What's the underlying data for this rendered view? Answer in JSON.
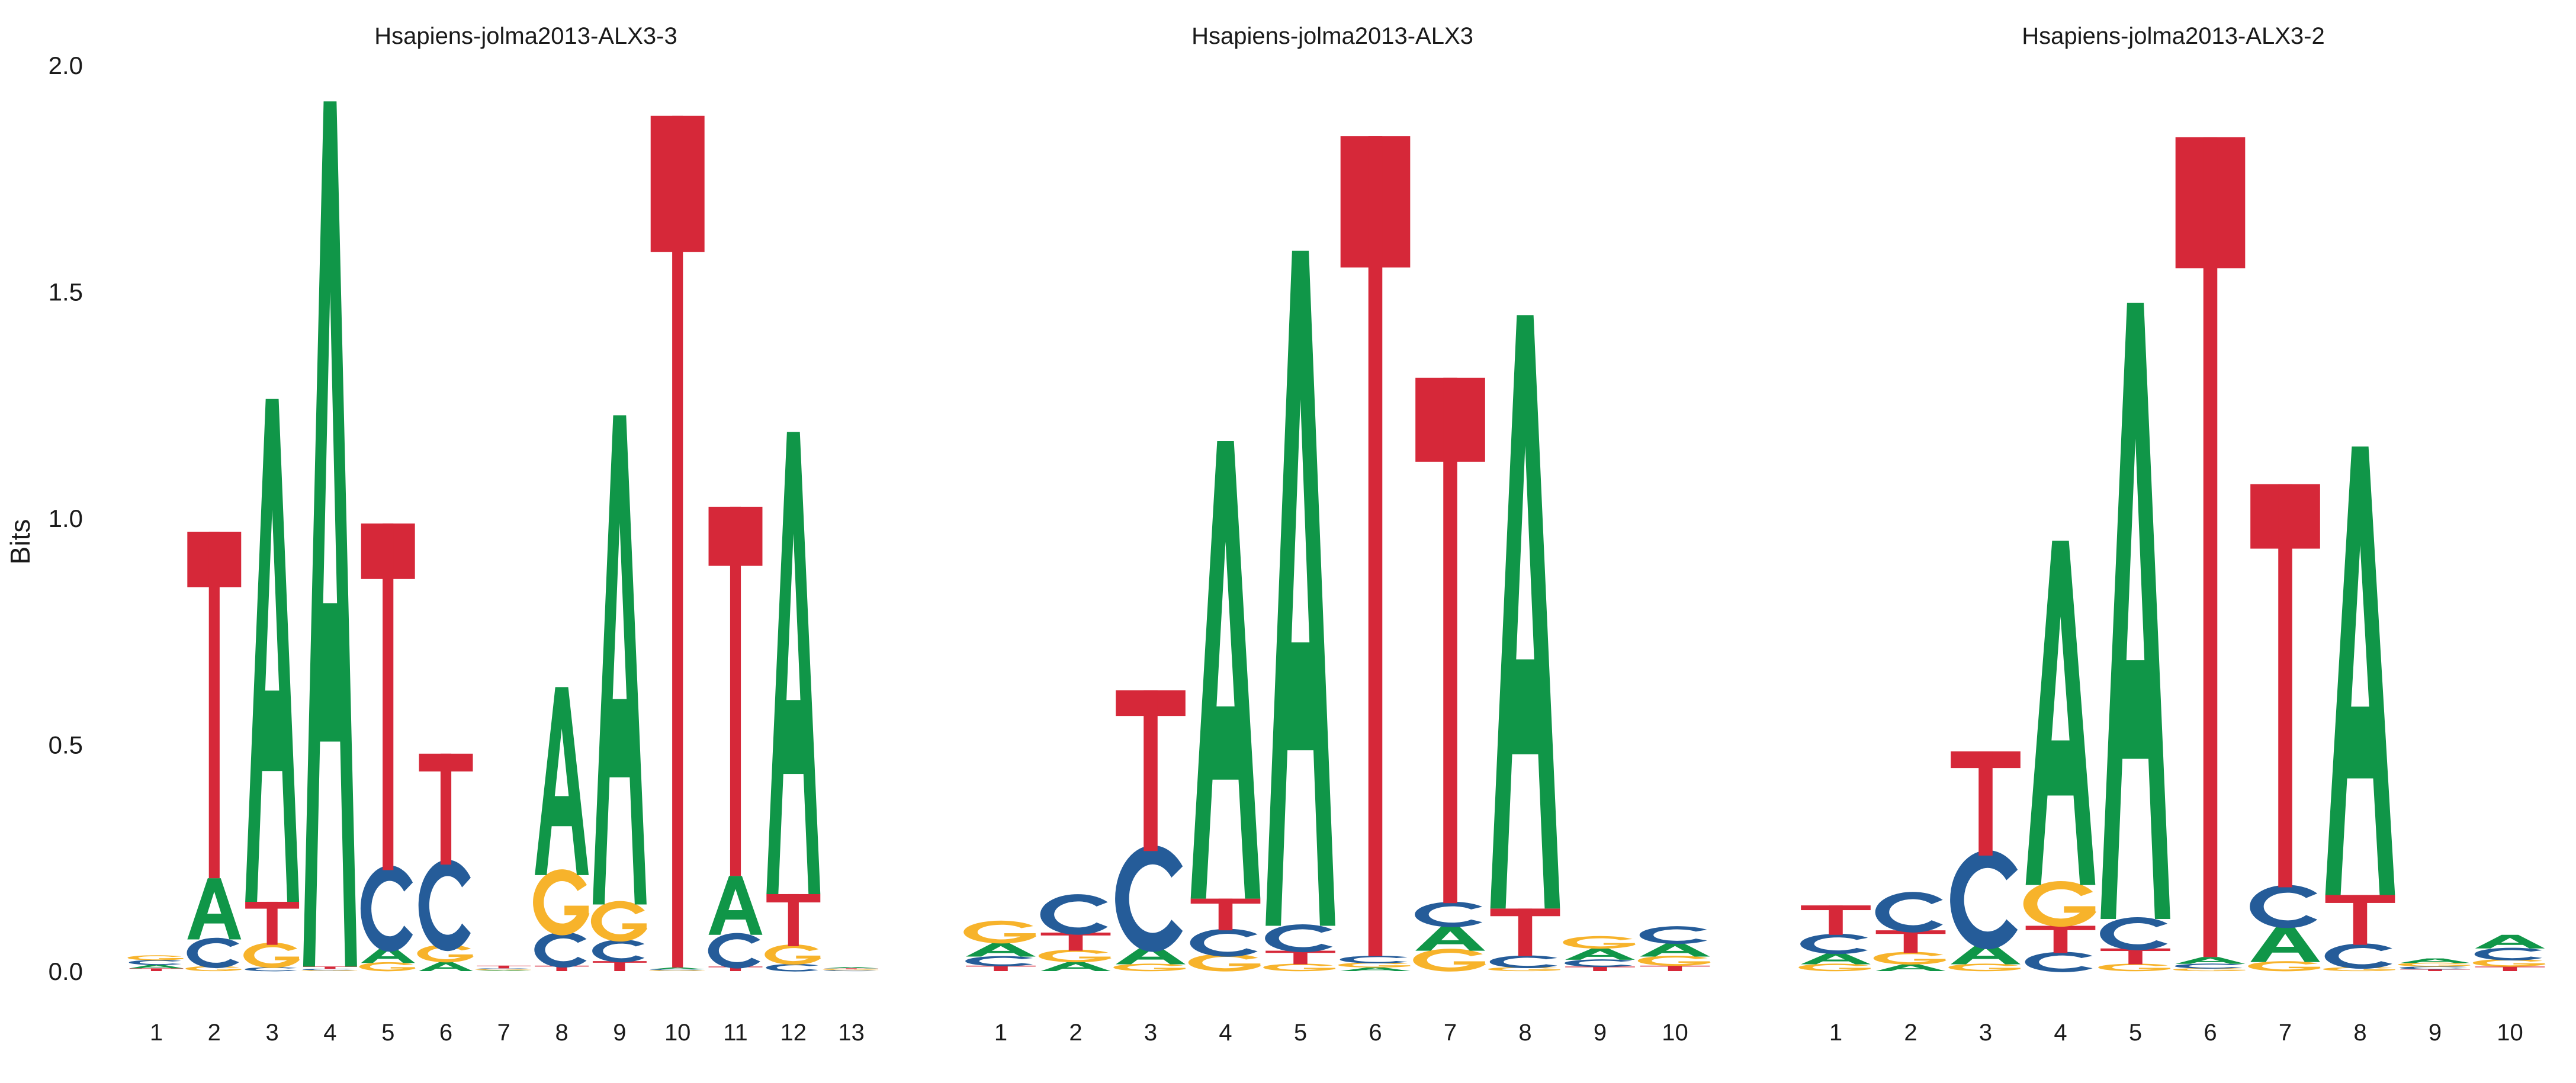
{
  "colors": {
    "A": "#109648",
    "C": "#255C99",
    "G": "#F7B32B",
    "T": "#D62839",
    "text": "#1a1a1a"
  },
  "y_axis": {
    "label": "Bits",
    "ticks": [
      "0.0",
      "0.5",
      "1.0",
      "1.5",
      "2.0"
    ],
    "tick_values": [
      0,
      0.5,
      1.0,
      1.5,
      2.0
    ]
  },
  "chart_data": [
    {
      "type": "sequence-logo",
      "title": "Hsapiens-jolma2013-ALX3-3",
      "ylabel": "Bits",
      "ylim": [
        0,
        2.0
      ],
      "x_ticks": [
        "1",
        "2",
        "3",
        "4",
        "5",
        "6",
        "7",
        "8",
        "9",
        "10",
        "11",
        "12",
        "13"
      ],
      "positions": [
        [
          [
            "T",
            0.006
          ],
          [
            "A",
            0.008
          ],
          [
            "C",
            0.01
          ],
          [
            "G",
            0.01
          ]
        ],
        [
          [
            "G",
            0.01
          ],
          [
            "C",
            0.06
          ],
          [
            "A",
            0.135
          ],
          [
            "T",
            0.765
          ]
        ],
        [
          [
            "C",
            0.008
          ],
          [
            "G",
            0.05
          ],
          [
            "T",
            0.095
          ],
          [
            "A",
            1.11
          ]
        ],
        [
          [
            "G",
            0.002
          ],
          [
            "C",
            0.003
          ],
          [
            "T",
            0.005
          ],
          [
            "A",
            1.91
          ]
        ],
        [
          [
            "G",
            0.018
          ],
          [
            "A",
            0.035
          ],
          [
            "C",
            0.17
          ],
          [
            "T",
            0.765
          ]
        ],
        [
          [
            "A",
            0.02
          ],
          [
            "G",
            0.035
          ],
          [
            "C",
            0.18
          ],
          [
            "T",
            0.245
          ]
        ],
        [
          [
            "A",
            0.002
          ],
          [
            "G",
            0.002
          ],
          [
            "C",
            0.002
          ],
          [
            "T",
            0.006
          ]
        ],
        [
          [
            "T",
            0.012
          ],
          [
            "C",
            0.07
          ],
          [
            "G",
            0.13
          ],
          [
            "A",
            0.415
          ]
        ],
        [
          [
            "T",
            0.022
          ],
          [
            "C",
            0.045
          ],
          [
            "G",
            0.08
          ],
          [
            "A",
            1.08
          ]
        ],
        [
          [
            "G",
            0.002
          ],
          [
            "C",
            0.002
          ],
          [
            "A",
            0.004
          ],
          [
            "T",
            1.88
          ]
        ],
        [
          [
            "T",
            0.01
          ],
          [
            "C",
            0.07
          ],
          [
            "A",
            0.13
          ],
          [
            "T2",
            0.0
          ],
          [
            "T",
            0.815
          ]
        ],
        [
          [
            "C",
            0.015
          ],
          [
            "G",
            0.04
          ],
          [
            "T",
            0.115
          ],
          [
            "A",
            1.02
          ]
        ],
        [
          [
            "C",
            0.002
          ],
          [
            "G",
            0.002
          ],
          [
            "T",
            0.002
          ],
          [
            "A",
            0.003
          ]
        ]
      ]
    },
    {
      "type": "sequence-logo",
      "title": "Hsapiens-jolma2013-ALX3",
      "ylabel": "",
      "ylim": [
        0,
        2.0
      ],
      "x_ticks": [
        "1",
        "2",
        "3",
        "4",
        "5",
        "6",
        "7",
        "8",
        "9",
        "10"
      ],
      "positions": [
        [
          [
            "T",
            0.012
          ],
          [
            "C",
            0.02
          ],
          [
            "A",
            0.03
          ],
          [
            "G",
            0.045
          ]
        ],
        [
          [
            "A",
            0.02
          ],
          [
            "G",
            0.025
          ],
          [
            "T",
            0.04
          ],
          [
            "C",
            0.08
          ]
        ],
        [
          [
            "G",
            0.015
          ],
          [
            "A",
            0.04
          ],
          [
            "C",
            0.21
          ],
          [
            "T",
            0.355
          ]
        ],
        [
          [
            "G",
            0.035
          ],
          [
            "C",
            0.055
          ],
          [
            "T",
            0.07
          ],
          [
            "A",
            1.01
          ]
        ],
        [
          [
            "G",
            0.015
          ],
          [
            "T",
            0.03
          ],
          [
            "C",
            0.055
          ],
          [
            "A",
            1.49
          ]
        ],
        [
          [
            "A",
            0.008
          ],
          [
            "G",
            0.01
          ],
          [
            "C",
            0.015
          ],
          [
            "T",
            1.81
          ]
        ],
        [
          [
            "G",
            0.045
          ],
          [
            "A",
            0.055
          ],
          [
            "C",
            0.05
          ],
          [
            "T",
            1.16
          ]
        ],
        [
          [
            "G",
            0.008
          ],
          [
            "C",
            0.025
          ],
          [
            "T",
            0.105
          ],
          [
            "A",
            1.31
          ]
        ],
        [
          [
            "T",
            0.01
          ],
          [
            "C",
            0.015
          ],
          [
            "A",
            0.025
          ],
          [
            "G",
            0.025
          ]
        ],
        [
          [
            "T",
            0.012
          ],
          [
            "G",
            0.02
          ],
          [
            "A",
            0.03
          ],
          [
            "C",
            0.035
          ]
        ]
      ]
    },
    {
      "type": "sequence-logo",
      "title": "Hsapiens-jolma2013-ALX3-2",
      "ylabel": "",
      "ylim": [
        0,
        2.0
      ],
      "x_ticks": [
        "1",
        "2",
        "3",
        "4",
        "5",
        "6",
        "7",
        "8",
        "9",
        "10"
      ],
      "positions": [
        [
          [
            "G",
            0.015
          ],
          [
            "A",
            0.025
          ],
          [
            "C",
            0.04
          ],
          [
            "T",
            0.065
          ]
        ],
        [
          [
            "A",
            0.015
          ],
          [
            "G",
            0.025
          ],
          [
            "T",
            0.05
          ],
          [
            "C",
            0.08
          ]
        ],
        [
          [
            "G",
            0.015
          ],
          [
            "A",
            0.045
          ],
          [
            "C",
            0.195
          ],
          [
            "T",
            0.23
          ]
        ],
        [
          [
            "C",
            0.04
          ],
          [
            "T",
            0.06
          ],
          [
            "G",
            0.09
          ],
          [
            "A",
            0.76
          ]
        ],
        [
          [
            "G",
            0.015
          ],
          [
            "T",
            0.035
          ],
          [
            "C",
            0.065
          ],
          [
            "A",
            1.36
          ]
        ],
        [
          [
            "G",
            0.006
          ],
          [
            "C",
            0.01
          ],
          [
            "A",
            0.015
          ],
          [
            "T",
            1.81
          ]
        ],
        [
          [
            "G",
            0.02
          ],
          [
            "A",
            0.08
          ],
          [
            "C",
            0.085
          ],
          [
            "T",
            0.89
          ]
        ],
        [
          [
            "G",
            0.008
          ],
          [
            "C",
            0.05
          ],
          [
            "T",
            0.11
          ],
          [
            "A",
            0.99
          ]
        ],
        [
          [
            "T",
            0.004
          ],
          [
            "C",
            0.006
          ],
          [
            "G",
            0.008
          ],
          [
            "A",
            0.01
          ]
        ],
        [
          [
            "T",
            0.01
          ],
          [
            "G",
            0.015
          ],
          [
            "C",
            0.025
          ],
          [
            "A",
            0.03
          ]
        ]
      ]
    }
  ]
}
